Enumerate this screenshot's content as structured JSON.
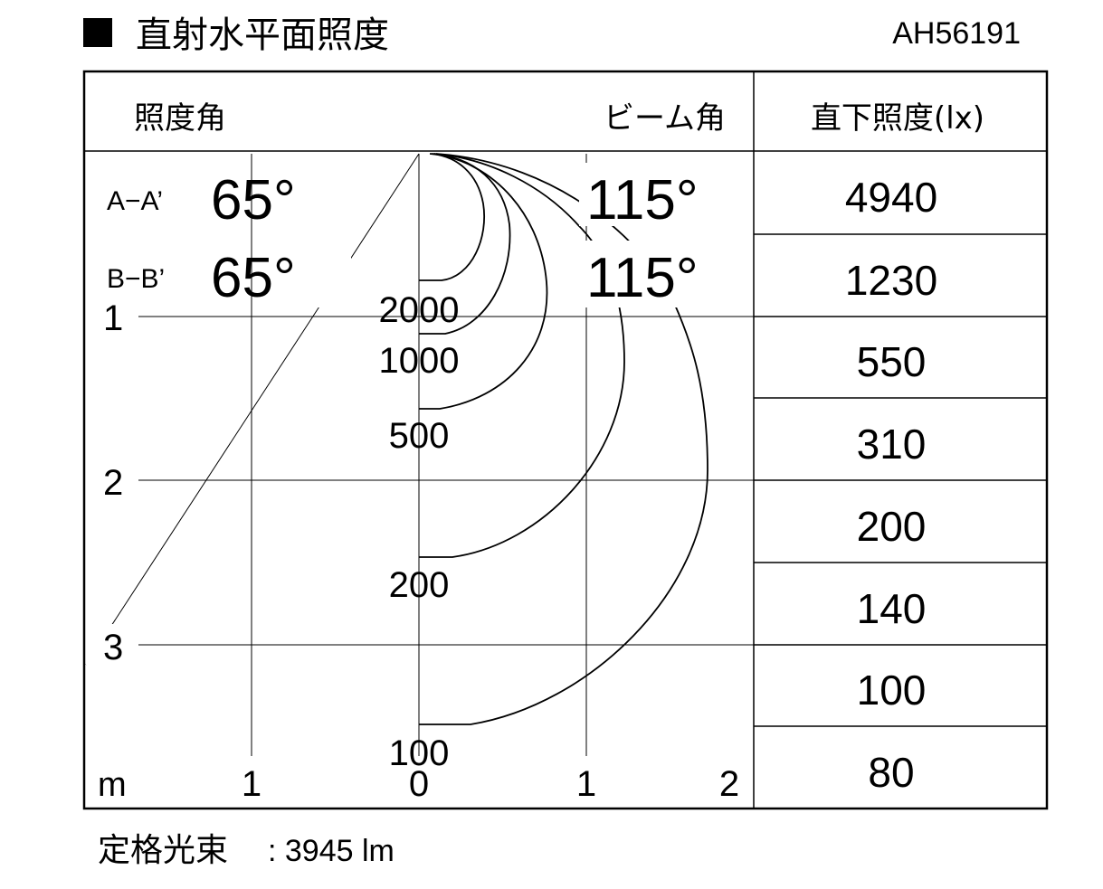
{
  "title": {
    "marker": "■",
    "text": "直射水平面照度",
    "model": "AH56191"
  },
  "header": {
    "illuminance_angle": "照度角",
    "beam_angle": "ビーム角",
    "direct_illuminance": "直下照度(lx)"
  },
  "angles": [
    {
      "label": "A−A’",
      "illuminance_angle": "65°",
      "beam_angle": "115°"
    },
    {
      "label": "B−B’",
      "illuminance_angle": "65°",
      "beam_angle": "115°"
    }
  ],
  "contours": [
    "2000",
    "1000",
    "500",
    "200",
    "100"
  ],
  "y_axis": {
    "ticks": [
      "1",
      "2",
      "3"
    ]
  },
  "x_axis": {
    "unit": "m",
    "ticks": [
      "1",
      "0",
      "1",
      "2"
    ]
  },
  "direct_illuminance_values": [
    "4940",
    "1230",
    "550",
    "310",
    "200",
    "140",
    "100",
    "80"
  ],
  "footer": {
    "rated_flux_label": "定格光束",
    "rated_flux_value": ": 3945 lm"
  }
}
